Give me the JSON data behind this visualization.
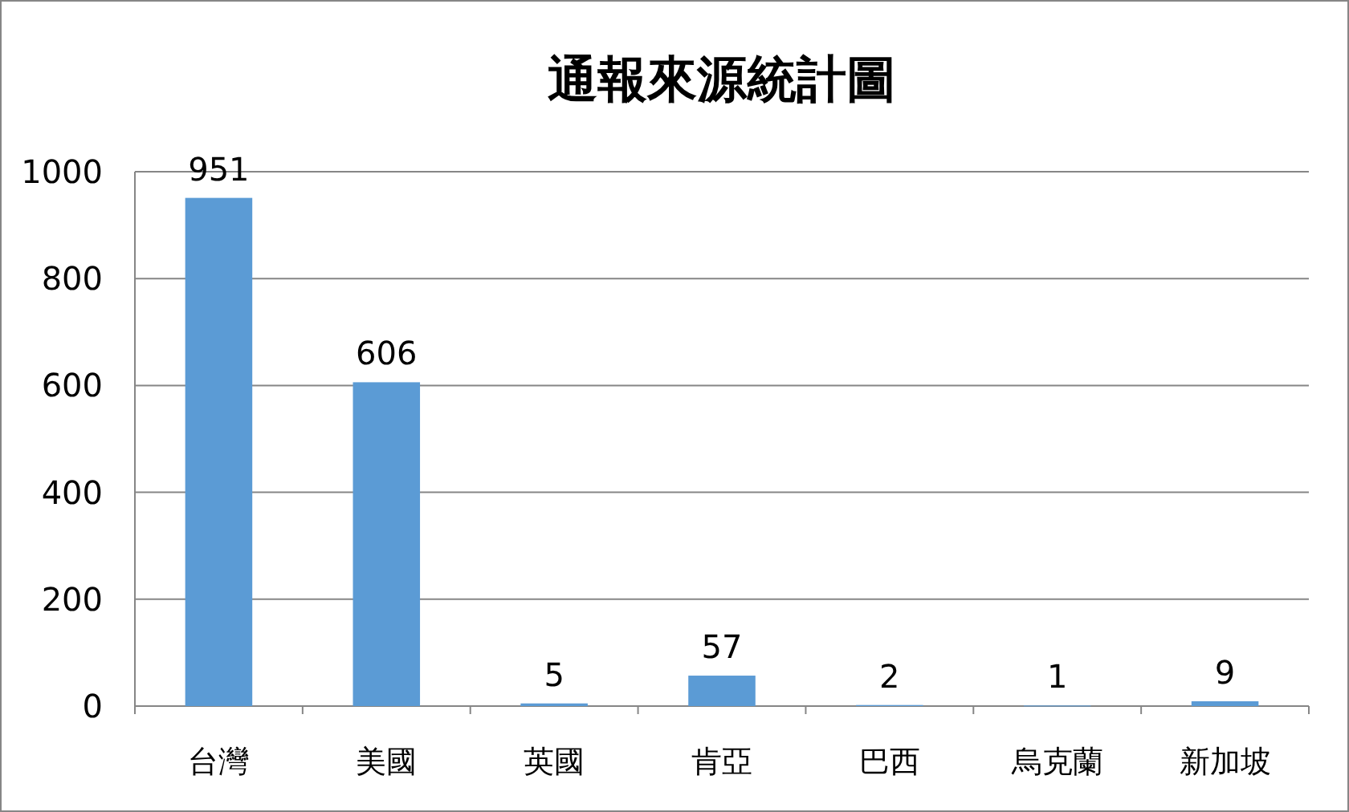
{
  "chart_data": {
    "type": "bar",
    "title": "通報來源統計圖",
    "categories": [
      "台灣",
      "美國",
      "英國",
      "肯亞",
      "巴西",
      "烏克蘭",
      "新加坡"
    ],
    "values": [
      951,
      606,
      5,
      57,
      2,
      1,
      9
    ],
    "color": "#5b9bd5",
    "ylim": [
      0,
      1000
    ],
    "yticks": [
      0,
      200,
      400,
      600,
      800,
      1000
    ],
    "grid": "y",
    "data_labels": true
  }
}
